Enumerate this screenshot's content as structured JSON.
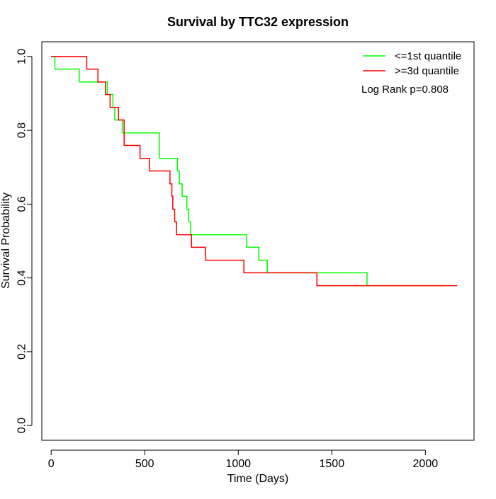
{
  "chart_data": {
    "type": "line",
    "title": "Survival by TTC32 expression",
    "xlabel": "Time (Days)",
    "ylabel": "Survival Probability",
    "xlim": [
      -50,
      2260
    ],
    "ylim": [
      -0.04,
      1.04
    ],
    "x_ticks": [
      0,
      500,
      1000,
      1500,
      2000
    ],
    "x_tick_labels": [
      "0",
      "500",
      "1000",
      "1500",
      "2000"
    ],
    "y_ticks": [
      0.0,
      0.2,
      0.4,
      0.6,
      0.8,
      1.0
    ],
    "y_tick_labels": [
      "0.0",
      "0.2",
      "0.4",
      "0.6",
      "0.8",
      "1.0"
    ],
    "grid": false,
    "legend_position": "top-right",
    "annotation": "Log Rank p=0.808",
    "series": [
      {
        "name": "<=1st quantile",
        "color": "#00ff00",
        "steps": [
          [
            0,
            1.0
          ],
          [
            20,
            0.966
          ],
          [
            150,
            0.931
          ],
          [
            250,
            0.931
          ],
          [
            300,
            0.897
          ],
          [
            330,
            0.862
          ],
          [
            340,
            0.828
          ],
          [
            380,
            0.793
          ],
          [
            575,
            0.793
          ],
          [
            578,
            0.724
          ],
          [
            670,
            0.724
          ],
          [
            675,
            0.69
          ],
          [
            685,
            0.655
          ],
          [
            700,
            0.621
          ],
          [
            725,
            0.586
          ],
          [
            735,
            0.552
          ],
          [
            745,
            0.517
          ],
          [
            1040,
            0.517
          ],
          [
            1045,
            0.483
          ],
          [
            1110,
            0.448
          ],
          [
            1150,
            0.448
          ],
          [
            1155,
            0.414
          ],
          [
            1685,
            0.414
          ],
          [
            1688,
            0.379
          ],
          [
            2100,
            0.379
          ]
        ]
      },
      {
        "name": ">=3d quantile",
        "color": "#ff0000",
        "steps": [
          [
            0,
            1.0
          ],
          [
            185,
            1.0
          ],
          [
            190,
            0.966
          ],
          [
            250,
            0.931
          ],
          [
            290,
            0.897
          ],
          [
            315,
            0.862
          ],
          [
            360,
            0.828
          ],
          [
            390,
            0.759
          ],
          [
            475,
            0.724
          ],
          [
            525,
            0.69
          ],
          [
            635,
            0.655
          ],
          [
            645,
            0.621
          ],
          [
            650,
            0.586
          ],
          [
            660,
            0.552
          ],
          [
            670,
            0.517
          ],
          [
            750,
            0.483
          ],
          [
            825,
            0.448
          ],
          [
            1030,
            0.414
          ],
          [
            1415,
            0.414
          ],
          [
            1420,
            0.379
          ],
          [
            2170,
            0.379
          ]
        ]
      }
    ]
  }
}
